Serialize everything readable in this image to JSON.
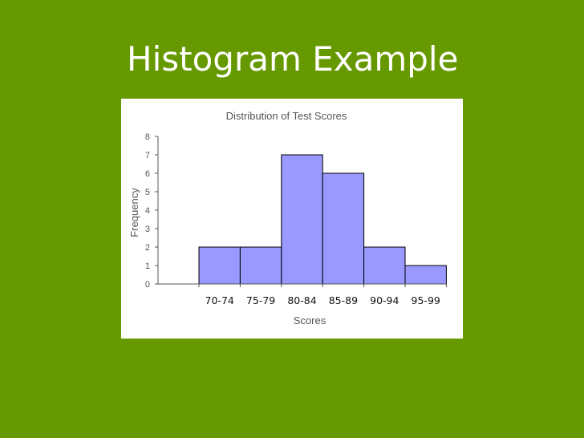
{
  "slide": {
    "title": "Histogram Example"
  },
  "colors": {
    "background": "#669900",
    "panel": "#ffffff",
    "bar_fill": "#9999ff",
    "bar_stroke": "#000000"
  },
  "chart_data": {
    "type": "bar",
    "title": "Distribution of Test Scores",
    "xlabel": "Scores",
    "ylabel": "Frequency",
    "categories": [
      "70-74",
      "75-79",
      "80-84",
      "85-89",
      "90-94",
      "95-99"
    ],
    "values": [
      2,
      2,
      7,
      6,
      2,
      1
    ],
    "ylim": [
      0,
      8
    ],
    "yticks": [
      0,
      1,
      2,
      3,
      4,
      5,
      6,
      7,
      8
    ],
    "grid": false,
    "legend": "none"
  }
}
